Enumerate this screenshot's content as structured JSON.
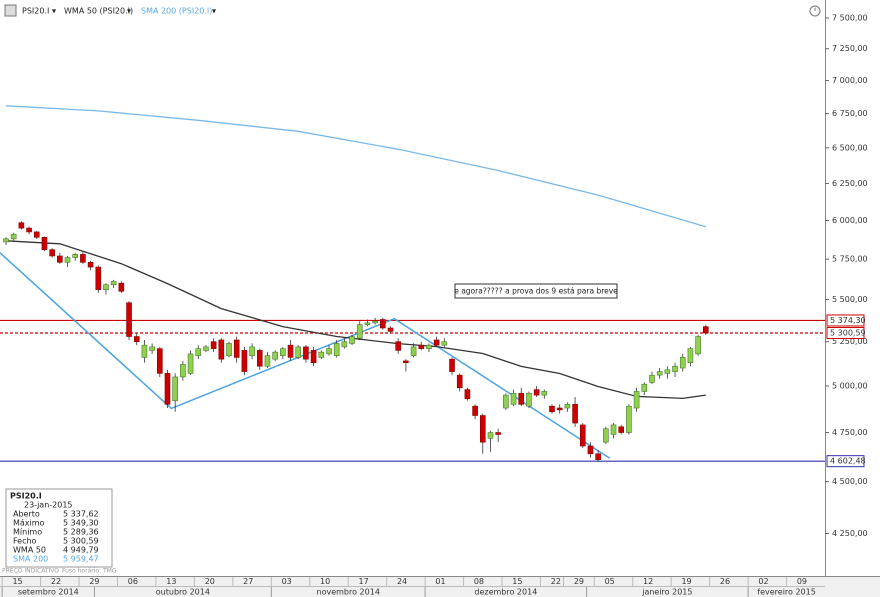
{
  "toolbar": {
    "symbol": "PSI20.I"
  },
  "chart_data": {
    "type": "candlestick",
    "log_y": true,
    "xlim": [
      -0.78,
      106.5
    ],
    "ylim": [
      4060,
      7650
    ],
    "yticks": [
      {
        "value": 4250,
        "label": "4 250,00"
      },
      {
        "value": 4500,
        "label": "4 500,00"
      },
      {
        "value": 4750,
        "label": "4 750,00"
      },
      {
        "value": 5000,
        "label": "5 000,00"
      },
      {
        "value": 5250,
        "label": "5 250,00"
      },
      {
        "value": 5500,
        "label": "5 500,00"
      },
      {
        "value": 5750,
        "label": "5 750,00"
      },
      {
        "value": 6000,
        "label": "6 000,00"
      },
      {
        "value": 6250,
        "label": "6 250,00"
      },
      {
        "value": 6500,
        "label": "6 500,00"
      },
      {
        "value": 6750,
        "label": "6 750,00"
      },
      {
        "value": 7000,
        "label": "7 000,00"
      },
      {
        "value": 7250,
        "label": "7 250,00"
      },
      {
        "value": 7500,
        "label": "7 500,00"
      }
    ],
    "xticks": [
      {
        "value": 0,
        "label": "15"
      },
      {
        "value": 5,
        "label": "22"
      },
      {
        "value": 10,
        "label": "29"
      },
      {
        "value": 15,
        "label": "06"
      },
      {
        "value": 20,
        "label": "13"
      },
      {
        "value": 25,
        "label": "20"
      },
      {
        "value": 30,
        "label": "27"
      },
      {
        "value": 35,
        "label": "03"
      },
      {
        "value": 40,
        "label": "10"
      },
      {
        "value": 45,
        "label": "17"
      },
      {
        "value": 50,
        "label": "24"
      },
      {
        "value": 55,
        "label": "01"
      },
      {
        "value": 60,
        "label": "08"
      },
      {
        "value": 65,
        "label": "15"
      },
      {
        "value": 70,
        "label": "22"
      },
      {
        "value": 73,
        "label": "29"
      },
      {
        "value": 77,
        "label": "05"
      },
      {
        "value": 82,
        "label": "12"
      },
      {
        "value": 87,
        "label": "19"
      },
      {
        "value": 92,
        "label": "26"
      },
      {
        "value": 97,
        "label": "02"
      },
      {
        "value": 102,
        "label": "09"
      }
    ],
    "months": [
      {
        "value": 0,
        "label": "setembro 2014"
      },
      {
        "value": 12,
        "label": "outubro 2014"
      },
      {
        "value": 35,
        "label": "novembro 2014"
      },
      {
        "value": 55,
        "label": "dezembro 2014"
      },
      {
        "value": 76,
        "label": "janeiro 2015"
      },
      {
        "value": 97,
        "label": "fevereiro 2015"
      }
    ],
    "candles": {
      "up_color": "#8fd14f",
      "down_color": "#cc0000",
      "open": [
        5860,
        5880,
        5985,
        5950,
        5925,
        5890,
        5810,
        5770,
        5730,
        5760,
        5780,
        5730,
        5700,
        5560,
        5590,
        5600,
        5480,
        5280,
        5160,
        5200,
        5210,
        5070,
        4920,
        5050,
        5070,
        5170,
        5200,
        5250,
        5260,
        5170,
        5260,
        5200,
        5170,
        5200,
        5110,
        5150,
        5170,
        5230,
        5160,
        5220,
        5200,
        5160,
        5180,
        5170,
        5220,
        5240,
        5270,
        5350,
        5360,
        5380,
        5330,
        5250,
        5140,
        5170,
        5230,
        5210,
        5260,
        5230,
        5150,
        5060,
        4980,
        4890,
        4840,
        4720,
        4750,
        4880,
        4900,
        4960,
        4890,
        4980,
        4950,
        4890,
        4880,
        4880,
        4900,
        4790,
        4680,
        4640,
        4700,
        4740,
        4780,
        4750,
        4880,
        4970,
        5020,
        5060,
        5070,
        5080,
        5100,
        5130,
        5180,
        5337.62
      ],
      "high": [
        5890,
        5920,
        5995,
        5960,
        5930,
        5895,
        5820,
        5790,
        5770,
        5790,
        5800,
        5740,
        5710,
        5600,
        5620,
        5610,
        5490,
        5300,
        5260,
        5240,
        5220,
        5090,
        5070,
        5140,
        5200,
        5230,
        5230,
        5270,
        5270,
        5250,
        5280,
        5220,
        5240,
        5210,
        5190,
        5200,
        5220,
        5260,
        5230,
        5230,
        5220,
        5200,
        5230,
        5260,
        5270,
        5290,
        5370,
        5380,
        5390,
        5390,
        5340,
        5270,
        5150,
        5240,
        5250,
        5240,
        5280,
        5270,
        5160,
        5070,
        4990,
        4900,
        4850,
        4760,
        4770,
        4960,
        4980,
        4990,
        4970,
        5000,
        4980,
        4900,
        4900,
        4910,
        4940,
        4800,
        4700,
        4660,
        4780,
        4800,
        4790,
        4900,
        4990,
        5020,
        5080,
        5100,
        5110,
        5130,
        5180,
        5220,
        5290,
        5349.3
      ],
      "low": [
        5840,
        5870,
        5940,
        5910,
        5880,
        5800,
        5760,
        5720,
        5700,
        5740,
        5720,
        5680,
        5540,
        5530,
        5570,
        5540,
        5260,
        5230,
        5130,
        5180,
        5050,
        4880,
        4860,
        5030,
        5060,
        5150,
        5190,
        5190,
        5130,
        5160,
        5130,
        5060,
        5150,
        5090,
        5100,
        5140,
        5150,
        5140,
        5150,
        5130,
        5110,
        5150,
        5170,
        5160,
        5210,
        5230,
        5260,
        5340,
        5350,
        5320,
        5300,
        5180,
        5080,
        5160,
        5200,
        5190,
        5220,
        5220,
        5060,
        4970,
        4920,
        4820,
        4640,
        4650,
        4700,
        4870,
        4890,
        4890,
        4880,
        4940,
        4930,
        4850,
        4850,
        4860,
        4780,
        4670,
        4620,
        4600,
        4690,
        4720,
        4740,
        4740,
        4860,
        4950,
        5010,
        5040,
        5040,
        5050,
        5080,
        5110,
        5170,
        5289.36
      ],
      "close": [
        5880,
        5910,
        5950,
        5925,
        5890,
        5810,
        5770,
        5730,
        5760,
        5780,
        5730,
        5700,
        5560,
        5590,
        5610,
        5550,
        5280,
        5250,
        5230,
        5220,
        5070,
        4900,
        5050,
        5120,
        5180,
        5210,
        5220,
        5210,
        5150,
        5240,
        5160,
        5080,
        5220,
        5110,
        5170,
        5190,
        5210,
        5160,
        5220,
        5150,
        5130,
        5190,
        5210,
        5240,
        5250,
        5280,
        5350,
        5360,
        5370,
        5330,
        5310,
        5200,
        5130,
        5220,
        5210,
        5230,
        5230,
        5250,
        5080,
        4990,
        4930,
        4840,
        4700,
        4750,
        4740,
        4950,
        4960,
        4900,
        4960,
        4950,
        4970,
        4860,
        4870,
        4900,
        4800,
        4680,
        4640,
        4610,
        4770,
        4790,
        4750,
        4890,
        4970,
        5010,
        5060,
        5080,
        5090,
        5110,
        5160,
        5210,
        5280,
        5300.59
      ]
    },
    "series": [
      {
        "name": "WMA 50 (PSI20.I)",
        "color": "#333333",
        "x": [
          0,
          7,
          15,
          21,
          28,
          36,
          43,
          51,
          56,
          62,
          67,
          72,
          77,
          82,
          88,
          91
        ],
        "values": [
          5867,
          5848,
          5721,
          5597,
          5445,
          5338,
          5280,
          5239,
          5222,
          5182,
          5109,
          5069,
          4997,
          4943,
          4932,
          4949.79
        ]
      },
      {
        "name": "SMA 200 (PSI20.I)",
        "color": "#7ab8e8",
        "x": [
          0,
          12,
          25,
          38,
          51,
          64,
          77,
          91
        ],
        "values": [
          6808,
          6770,
          6700,
          6620,
          6490,
          6340,
          6170,
          5959.47
        ]
      }
    ],
    "trendline": {
      "color": "#4aa3df",
      "x": [
        -0.78,
        21.5,
        50.5,
        78.5
      ],
      "values": [
        5790,
        4878,
        5385,
        4617
      ]
    },
    "levels": [
      {
        "value": 5374.3,
        "label": "5 374,30",
        "color": "#cc0000",
        "style": "solid"
      },
      {
        "value": 5300.59,
        "label": "5 300,59",
        "color": "#cc0000",
        "style": "dashed"
      },
      {
        "value": 4602.48,
        "label": "4 602,48",
        "color": "#3333aa",
        "style": "solid"
      }
    ],
    "annotation": "e agora????? a prova dos 9 está para breve"
  },
  "info": {
    "title": "PSI20.I",
    "date": "23-jan-2015",
    "rows": [
      [
        "Aberto",
        "5 337,62"
      ],
      [
        "Máximo",
        "5 349,30"
      ],
      [
        "Mínimo",
        "5 289,36"
      ],
      [
        "Fecho",
        "5 300,59"
      ],
      [
        "WMA 50",
        "4 949,79"
      ],
      [
        "SMA 200",
        "5 959,47"
      ]
    ],
    "footer": [
      "PREÇO INDICATIVO",
      "Fuso horário: TMG"
    ]
  }
}
